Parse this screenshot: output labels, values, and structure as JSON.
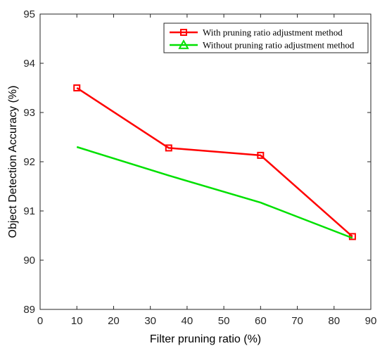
{
  "chart_data": {
    "type": "line",
    "title": "",
    "xlabel": "Filter pruning ratio (%)",
    "ylabel": "Object Detection Accuracy (%)",
    "xlim": [
      0,
      90
    ],
    "ylim": [
      89,
      95
    ],
    "xticks": [
      0,
      10,
      20,
      30,
      40,
      50,
      60,
      70,
      80,
      90
    ],
    "yticks": [
      89,
      90,
      91,
      92,
      93,
      94,
      95
    ],
    "grid": false,
    "legend_position": "top-right",
    "series": [
      {
        "name": "With pruning ratio adjustment method",
        "color": "#ff0000",
        "marker": "square",
        "x": [
          10,
          35,
          60,
          85
        ],
        "y": [
          93.5,
          92.28,
          92.13,
          90.48
        ]
      },
      {
        "name": "Without pruning ratio adjustment method",
        "color": "#00e000",
        "marker": "triangle",
        "x": [
          10,
          35,
          60,
          85
        ],
        "y": [
          92.3,
          91.72,
          91.17,
          90.45
        ]
      }
    ]
  }
}
